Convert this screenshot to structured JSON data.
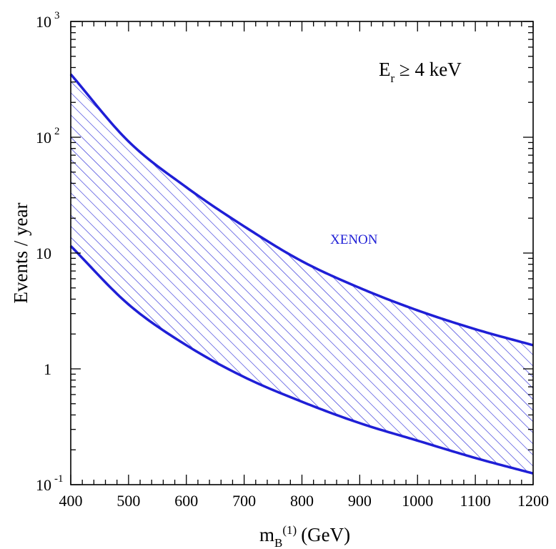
{
  "chart_data": {
    "type": "area",
    "x_axis": {
      "label_main": "m",
      "label_sub": "B",
      "label_sup": "(1)",
      "label_unit": "(GeV)",
      "range": [
        400,
        1200
      ],
      "ticks": [
        "400",
        "500",
        "600",
        "700",
        "800",
        "900",
        "1000",
        "1100",
        "1200"
      ]
    },
    "y_axis": {
      "label": "Events / year",
      "scale": "log",
      "range": [
        0.1,
        1000
      ],
      "ticks": [
        {
          "value": 0.1,
          "base": "10",
          "exp": "-1"
        },
        {
          "value": 1,
          "base": "1",
          "exp": ""
        },
        {
          "value": 10,
          "base": "10",
          "exp": ""
        },
        {
          "value": 100,
          "base": "10",
          "exp": "2"
        },
        {
          "value": 1000,
          "base": "10",
          "exp": "3"
        }
      ]
    },
    "annotation": {
      "main": "E",
      "sub": "r",
      "rest": " ≥ 4 keV"
    },
    "band": {
      "name": "XENON",
      "color": "#1f1fd6",
      "fill": "hatched",
      "upper": {
        "x": [
          400,
          500,
          600,
          700,
          800,
          900,
          1000,
          1100,
          1200
        ],
        "y": [
          350,
          92,
          37,
          17,
          8.5,
          5,
          3.2,
          2.2,
          1.6
        ]
      },
      "lower": {
        "x": [
          400,
          500,
          600,
          700,
          800,
          900,
          1000,
          1100,
          1200
        ],
        "y": [
          11.5,
          3.6,
          1.6,
          0.85,
          0.52,
          0.34,
          0.24,
          0.17,
          0.125
        ]
      }
    },
    "grid": false,
    "legend": "none"
  }
}
